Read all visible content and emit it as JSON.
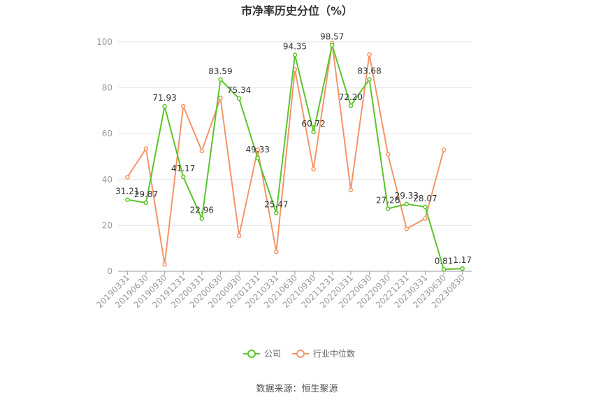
{
  "chart_data": {
    "type": "line",
    "title": "市净率历史分位（%）",
    "xlabel": "",
    "ylabel": "",
    "ylim": [
      0,
      100
    ],
    "yticks": [
      0,
      20,
      40,
      60,
      80,
      100
    ],
    "grid": true,
    "legend_position": "bottom",
    "categories": [
      "20190331",
      "20190630",
      "20190930",
      "20191231",
      "20200331",
      "20200630",
      "20200930",
      "20201231",
      "20210331",
      "20210630",
      "20210930",
      "20211231",
      "20220331",
      "20220630",
      "20220930",
      "20221231",
      "20230331",
      "20230630",
      "20230830"
    ],
    "series": [
      {
        "name": "公司",
        "color": "#5cc42a",
        "values": [
          31.21,
          29.87,
          71.93,
          41.17,
          22.96,
          83.59,
          75.34,
          49.33,
          25.47,
          94.35,
          60.72,
          98.57,
          72.2,
          83.68,
          27.26,
          29.33,
          28.07,
          0.81,
          1.17
        ],
        "labels": [
          "31.21",
          "29.87",
          "71.93",
          "41.17",
          "22.96",
          "83.59",
          "75.34",
          "49.33",
          "25.47",
          "94.35",
          "60.72",
          "98.57",
          "72.20",
          "83.68",
          "27.26",
          "29.33",
          "28.07",
          "0.81",
          "1.17"
        ]
      },
      {
        "name": "行业中位数",
        "color": "#f5946a",
        "values": [
          41,
          53.5,
          3,
          72,
          52.5,
          75.5,
          15.5,
          53,
          8.5,
          88,
          44.5,
          99.5,
          35.5,
          94.5,
          51,
          18.5,
          23,
          53,
          null
        ]
      }
    ]
  },
  "source_text": "数据来源：恒生聚源"
}
